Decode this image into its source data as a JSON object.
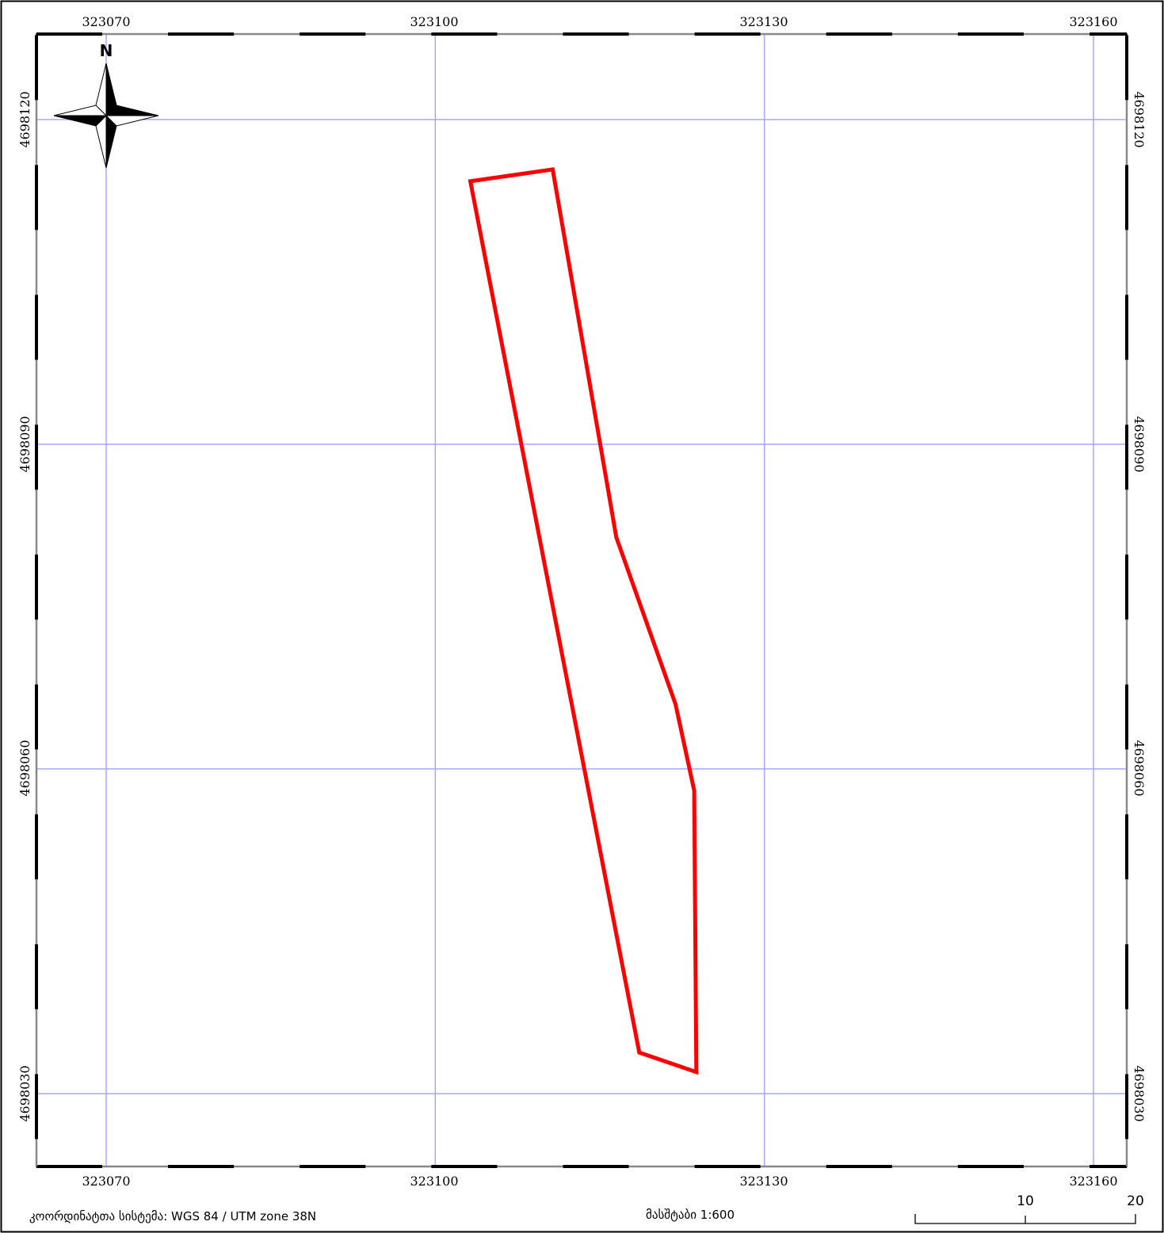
{
  "map": {
    "easting_ticks": [
      "323070",
      "323100",
      "323130",
      "323160"
    ],
    "northing_ticks": [
      "4698120",
      "4698090",
      "4698060",
      "4698030"
    ],
    "easting_values": [
      323070,
      323100,
      323130,
      323160
    ],
    "northing_values": [
      4698120,
      4698090,
      4698060,
      4698030
    ],
    "grid_color": "#a6a6ff",
    "parcel_color": "#ff0000",
    "parcel_vertices": [
      {
        "e": 323103.2,
        "n": 4698114.3
      },
      {
        "e": 323110.7,
        "n": 4698115.4
      },
      {
        "e": 323116.5,
        "n": 4698081.4
      },
      {
        "e": 323121.9,
        "n": 4698066.0
      },
      {
        "e": 323123.6,
        "n": 4698058.0
      },
      {
        "e": 323123.8,
        "n": 4698032.0
      },
      {
        "e": 323118.6,
        "n": 4698033.8
      }
    ]
  },
  "north_arrow": {
    "label": "N",
    "icon": "north-arrow-icon"
  },
  "footer": {
    "crs_text": "კოორდინატთა სისტემა: WGS 84 / UTM zone 38N",
    "scale_text": "მასშტაბი 1:600"
  },
  "scale_bar": {
    "labels": [
      "10",
      "20"
    ]
  }
}
